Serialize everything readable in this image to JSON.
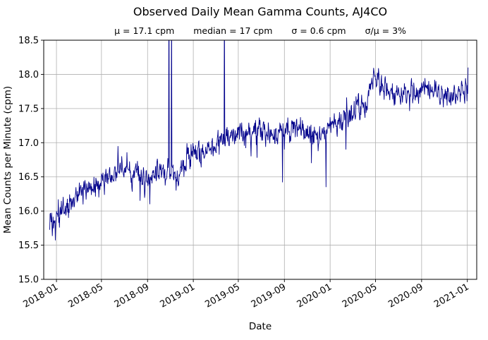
{
  "figure": {
    "background": "#ffffff"
  },
  "chart_data": {
    "type": "line",
    "title": "Observed Daily Mean Gamma Counts, AJ4CO",
    "stats": [
      "μ = 17.1 cpm",
      "median = 17 cpm",
      "σ = 0.6 cpm",
      "σ/μ = 3%"
    ],
    "xlabel": "Date",
    "ylabel": "Mean Counts per Minute (cpm)",
    "ylim": [
      15.0,
      18.5
    ],
    "y_ticks": [
      15.0,
      15.5,
      16.0,
      16.5,
      17.0,
      17.5,
      18.0,
      18.5
    ],
    "x_ticks": [
      "2018-01",
      "2018-05",
      "2018-09",
      "2019-01",
      "2019-05",
      "2019-09",
      "2020-01",
      "2020-05",
      "2020-09",
      "2021-01"
    ],
    "x_domain": [
      "2017-11-28",
      "2021-01-26"
    ],
    "series_start": "2017-12-14",
    "series_end": "2021-01-03",
    "grid": true,
    "legend": "none",
    "line_color": "#00008b",
    "grid_color": "#b0b0b0",
    "axis_color": "#000000",
    "noise_sigma": 0.085,
    "noise_seed": 42,
    "trend_keypoints": [
      {
        "date": "2017-12-14",
        "value": 15.9
      },
      {
        "date": "2017-12-24",
        "value": 15.8
      },
      {
        "date": "2018-01-05",
        "value": 15.95
      },
      {
        "date": "2018-01-25",
        "value": 16.02
      },
      {
        "date": "2018-02-15",
        "value": 16.15
      },
      {
        "date": "2018-03-05",
        "value": 16.28
      },
      {
        "date": "2018-03-25",
        "value": 16.32
      },
      {
        "date": "2018-04-15",
        "value": 16.38
      },
      {
        "date": "2018-05-05",
        "value": 16.45
      },
      {
        "date": "2018-05-25",
        "value": 16.5
      },
      {
        "date": "2018-06-15",
        "value": 16.6
      },
      {
        "date": "2018-07-05",
        "value": 16.62
      },
      {
        "date": "2018-07-25",
        "value": 16.55
      },
      {
        "date": "2018-08-15",
        "value": 16.5
      },
      {
        "date": "2018-09-05",
        "value": 16.45
      },
      {
        "date": "2018-09-25",
        "value": 16.55
      },
      {
        "date": "2018-10-15",
        "value": 16.6
      },
      {
        "date": "2018-11-05",
        "value": 16.55
      },
      {
        "date": "2018-11-20",
        "value": 16.45
      },
      {
        "date": "2018-12-10",
        "value": 16.7
      },
      {
        "date": "2018-12-28",
        "value": 16.9
      },
      {
        "date": "2019-01-20",
        "value": 16.85
      },
      {
        "date": "2019-02-10",
        "value": 16.95
      },
      {
        "date": "2019-03-05",
        "value": 17.0
      },
      {
        "date": "2019-04-01",
        "value": 17.05
      },
      {
        "date": "2019-05-01",
        "value": 17.1
      },
      {
        "date": "2019-06-01",
        "value": 17.15
      },
      {
        "date": "2019-07-01",
        "value": 17.2
      },
      {
        "date": "2019-08-01",
        "value": 17.1
      },
      {
        "date": "2019-09-01",
        "value": 17.15
      },
      {
        "date": "2019-10-01",
        "value": 17.2
      },
      {
        "date": "2019-11-01",
        "value": 17.15
      },
      {
        "date": "2019-12-01",
        "value": 17.1
      },
      {
        "date": "2020-01-01",
        "value": 17.25
      },
      {
        "date": "2020-02-01",
        "value": 17.3
      },
      {
        "date": "2020-03-01",
        "value": 17.45
      },
      {
        "date": "2020-04-01",
        "value": 17.6
      },
      {
        "date": "2020-04-25",
        "value": 17.85
      },
      {
        "date": "2020-05-10",
        "value": 17.95
      },
      {
        "date": "2020-05-25",
        "value": 17.8
      },
      {
        "date": "2020-06-15",
        "value": 17.72
      },
      {
        "date": "2020-07-15",
        "value": 17.75
      },
      {
        "date": "2020-08-15",
        "value": 17.68
      },
      {
        "date": "2020-09-10",
        "value": 17.8
      },
      {
        "date": "2020-10-10",
        "value": 17.72
      },
      {
        "date": "2020-11-10",
        "value": 17.7
      },
      {
        "date": "2020-12-10",
        "value": 17.75
      },
      {
        "date": "2021-01-03",
        "value": 17.8
      }
    ],
    "anomalies": [
      {
        "date": "2017-12-29",
        "value": 15.57
      },
      {
        "date": "2018-06-14",
        "value": 16.95
      },
      {
        "date": "2018-08-12",
        "value": 16.15
      },
      {
        "date": "2018-09-07",
        "value": 16.1
      },
      {
        "date": "2018-10-28",
        "value": 19.6
      },
      {
        "date": "2018-11-04",
        "value": 19.2
      },
      {
        "date": "2018-11-16",
        "value": 16.3
      },
      {
        "date": "2019-03-25",
        "value": 19.3
      },
      {
        "date": "2019-06-20",
        "value": 16.78
      },
      {
        "date": "2019-08-27",
        "value": 16.42
      },
      {
        "date": "2019-11-12",
        "value": 16.7
      },
      {
        "date": "2019-12-21",
        "value": 16.35
      },
      {
        "date": "2020-02-12",
        "value": 16.9
      },
      {
        "date": "2021-01-03",
        "value": 18.1
      }
    ]
  }
}
